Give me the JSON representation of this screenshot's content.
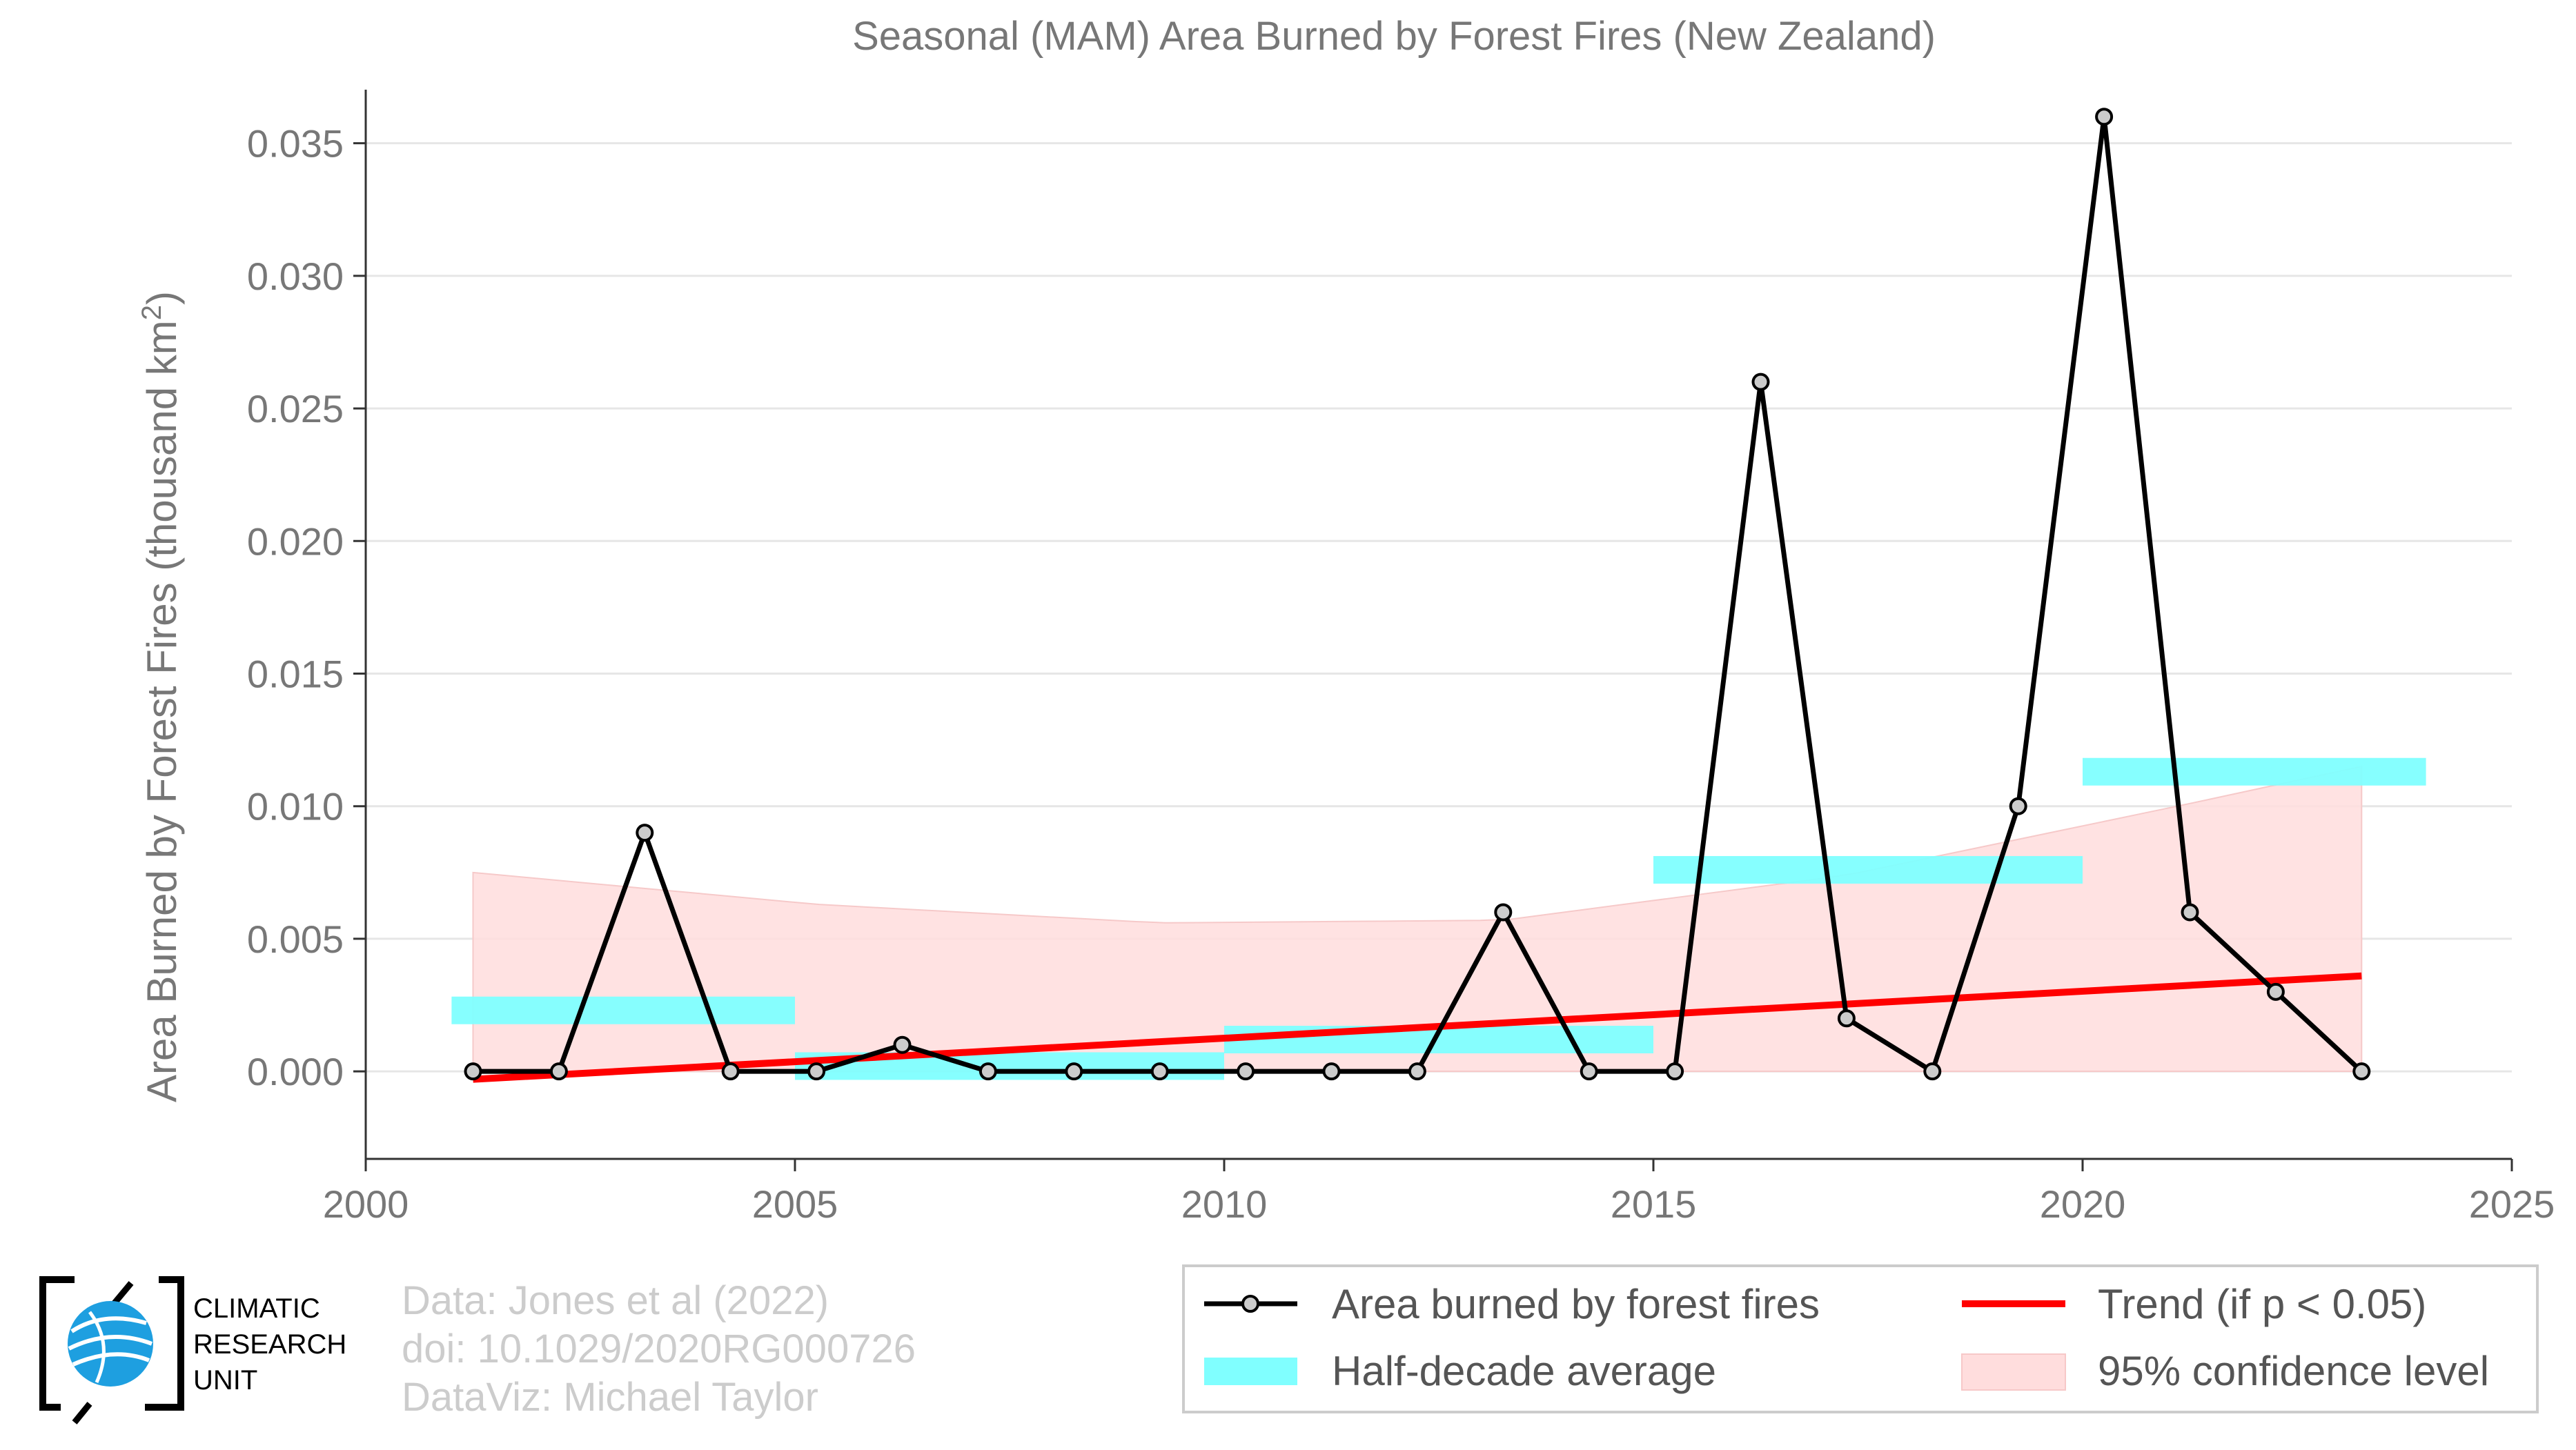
{
  "chart_data": {
    "type": "line",
    "title": "Seasonal (MAM) Area Burned by Forest Fires (New Zealand)",
    "ylabel": "Area Burned by Forest Fires (thousand km",
    "ylabel_sup": "2",
    "ylabel_close": ")",
    "xlabel": "",
    "xlim": [
      2000,
      2025
    ],
    "ylim": [
      -0.0033,
      0.0365
    ],
    "x_ticks": [
      2000,
      2005,
      2010,
      2015,
      2020,
      2025
    ],
    "x_tick_labels": [
      "2000",
      "2005",
      "2010",
      "2015",
      "2020",
      "2025"
    ],
    "y_ticks": [
      0.0,
      0.005,
      0.01,
      0.015,
      0.02,
      0.025,
      0.03,
      0.035
    ],
    "y_tick_labels": [
      "0.000",
      "0.005",
      "0.010",
      "0.015",
      "0.020",
      "0.025",
      "0.030",
      "0.035"
    ],
    "grid": "horizontal",
    "legend_position": "bottom-right",
    "series": [
      {
        "name": "Area burned by forest fires",
        "color": "#000000",
        "marker_fill": "#cccccc",
        "x": [
          2001.25,
          2002.25,
          2003.25,
          2004.25,
          2005.25,
          2006.25,
          2007.25,
          2008.25,
          2009.25,
          2010.25,
          2011.25,
          2012.25,
          2013.25,
          2014.25,
          2015.25,
          2016.25,
          2017.25,
          2018.25,
          2019.25,
          2020.25,
          2021.25,
          2022.25,
          2023.25
        ],
        "y": [
          0.0,
          0.0,
          0.009,
          0.0,
          0.0,
          0.001,
          0.0,
          0.0,
          0.0,
          0.0,
          0.0,
          0.0,
          0.006,
          0.0,
          0.0,
          0.026,
          0.002,
          0.0,
          0.01,
          0.036,
          0.006,
          0.003,
          0.0
        ]
      }
    ],
    "half_decade_average": {
      "name": "Half-decade average",
      "color": "#80ffff",
      "segments": [
        {
          "x0": 2001,
          "x1": 2005,
          "y": 0.0023
        },
        {
          "x0": 2005,
          "x1": 2010,
          "y": 0.0002
        },
        {
          "x0": 2010,
          "x1": 2015,
          "y": 0.0012
        },
        {
          "x0": 2015,
          "x1": 2020,
          "y": 0.0076
        },
        {
          "x0": 2020,
          "x1": 2024,
          "y": 0.0113
        }
      ]
    },
    "trend": {
      "name": "Trend (if p < 0.05)",
      "color": "#ff0000",
      "x": [
        2001.25,
        2023.25
      ],
      "y": [
        -0.0003,
        0.0036
      ]
    },
    "confidence": {
      "name": "95% confidence level",
      "color": "#ffdddd",
      "x": [
        2001.25,
        2005.25,
        2009.25,
        2013.25,
        2017.25,
        2021.25,
        2023.25
      ],
      "upper": [
        0.0075,
        0.0063,
        0.0056,
        0.0057,
        0.0074,
        0.0101,
        0.0115
      ],
      "lower": [
        0.0,
        0.0,
        0.0,
        0.0,
        0.0,
        0.0,
        0.0
      ]
    }
  },
  "credits": {
    "line1": "Data: Jones et al (2022)",
    "line2": "doi: 10.1029/2020RG000726",
    "line3": "DataViz: Michael Taylor"
  },
  "logo": {
    "line1": "CLIMATIC",
    "line2": "RESEARCH",
    "line3": "UNIT",
    "icon": "globe-icon"
  }
}
